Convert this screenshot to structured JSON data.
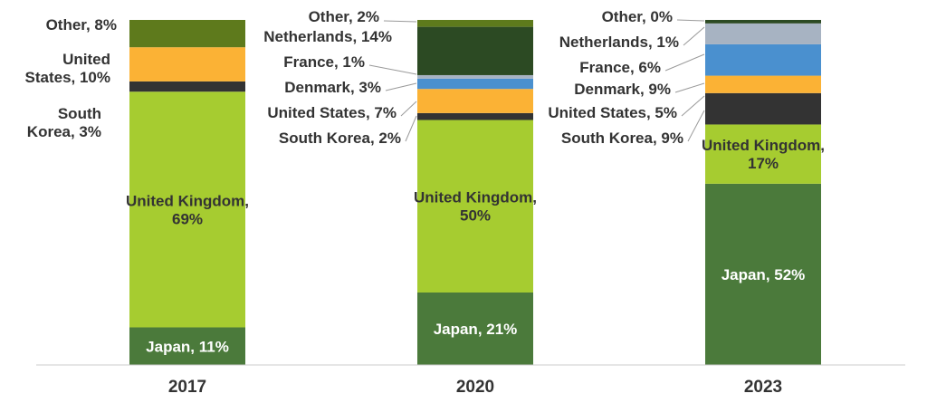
{
  "chart_data": {
    "type": "bar",
    "stacked": true,
    "normalized_percent": true,
    "categories": [
      "2017",
      "2020",
      "2023"
    ],
    "series": [
      {
        "name": "Japan",
        "color": "#4b7a3b",
        "label_color": "#ffffff",
        "values": [
          11,
          21,
          52
        ]
      },
      {
        "name": "United Kingdom",
        "color": "#a6cc30",
        "label_color": "#333333",
        "values": [
          69,
          50,
          17
        ]
      },
      {
        "name": "South Korea",
        "color": "#333333",
        "label_color": "#333333",
        "values": [
          3,
          2,
          9
        ]
      },
      {
        "name": "United States",
        "color": "#fbb235",
        "label_color": "#333333",
        "values": [
          10,
          7,
          5
        ]
      },
      {
        "name": "Denmark",
        "color": "#4a90cf",
        "label_color": "#333333",
        "values": [
          0,
          3,
          9
        ]
      },
      {
        "name": "France",
        "color": "#a7b3c2",
        "label_color": "#333333",
        "values": [
          0,
          1,
          6
        ]
      },
      {
        "name": "Netherlands",
        "color": "#2c4a23",
        "label_color": "#333333",
        "values": [
          0,
          14,
          1
        ]
      },
      {
        "name": "Other",
        "color": "#5e7a1c",
        "label_color": "#333333",
        "values": [
          8,
          2,
          0
        ]
      }
    ],
    "labels": [
      {
        "category": "2017",
        "series": "Japan",
        "text": "Japan, 11%",
        "placement": "inside"
      },
      {
        "category": "2017",
        "series": "United Kingdom",
        "text": "United Kingdom,\n69%",
        "placement": "inside"
      },
      {
        "category": "2017",
        "series": "South Korea",
        "text": "South\nKorea, 3%",
        "placement": "outside"
      },
      {
        "category": "2017",
        "series": "United States",
        "text": "United\nStates, 10%",
        "placement": "outside"
      },
      {
        "category": "2017",
        "series": "Other",
        "text": "Other, 8%",
        "placement": "outside"
      },
      {
        "category": "2020",
        "series": "Japan",
        "text": "Japan, 21%",
        "placement": "inside"
      },
      {
        "category": "2020",
        "series": "United Kingdom",
        "text": "United Kingdom,\n50%",
        "placement": "inside"
      },
      {
        "category": "2020",
        "series": "South Korea",
        "text": "South Korea, 2%",
        "placement": "outside"
      },
      {
        "category": "2020",
        "series": "United States",
        "text": "United States, 7%",
        "placement": "outside"
      },
      {
        "category": "2020",
        "series": "Denmark",
        "text": "Denmark, 3%",
        "placement": "outside"
      },
      {
        "category": "2020",
        "series": "France",
        "text": "France, 1%",
        "placement": "outside"
      },
      {
        "category": "2020",
        "series": "Netherlands",
        "text": "Netherlands, 14%",
        "placement": "outside"
      },
      {
        "category": "2020",
        "series": "Other",
        "text": "Other, 2%",
        "placement": "outside"
      },
      {
        "category": "2023",
        "series": "Japan",
        "text": "Japan, 52%",
        "placement": "inside"
      },
      {
        "category": "2023",
        "series": "United Kingdom",
        "text": "United Kingdom,\n17%",
        "placement": "inside"
      },
      {
        "category": "2023",
        "series": "South Korea",
        "text": "South Korea, 9%",
        "placement": "outside"
      },
      {
        "category": "2023",
        "series": "United States",
        "text": "United States, 5%",
        "placement": "outside"
      },
      {
        "category": "2023",
        "series": "Denmark",
        "text": "Denmark, 9%",
        "placement": "outside"
      },
      {
        "category": "2023",
        "series": "France",
        "text": "France, 6%",
        "placement": "outside"
      },
      {
        "category": "2023",
        "series": "Netherlands",
        "text": "Netherlands, 1%",
        "placement": "outside"
      },
      {
        "category": "2023",
        "series": "Other",
        "text": "Other, 0%",
        "placement": "outside"
      }
    ],
    "title": "",
    "xlabel": "",
    "ylabel": "",
    "ylim": [
      0,
      100
    ],
    "grid": false,
    "legend": "none"
  }
}
